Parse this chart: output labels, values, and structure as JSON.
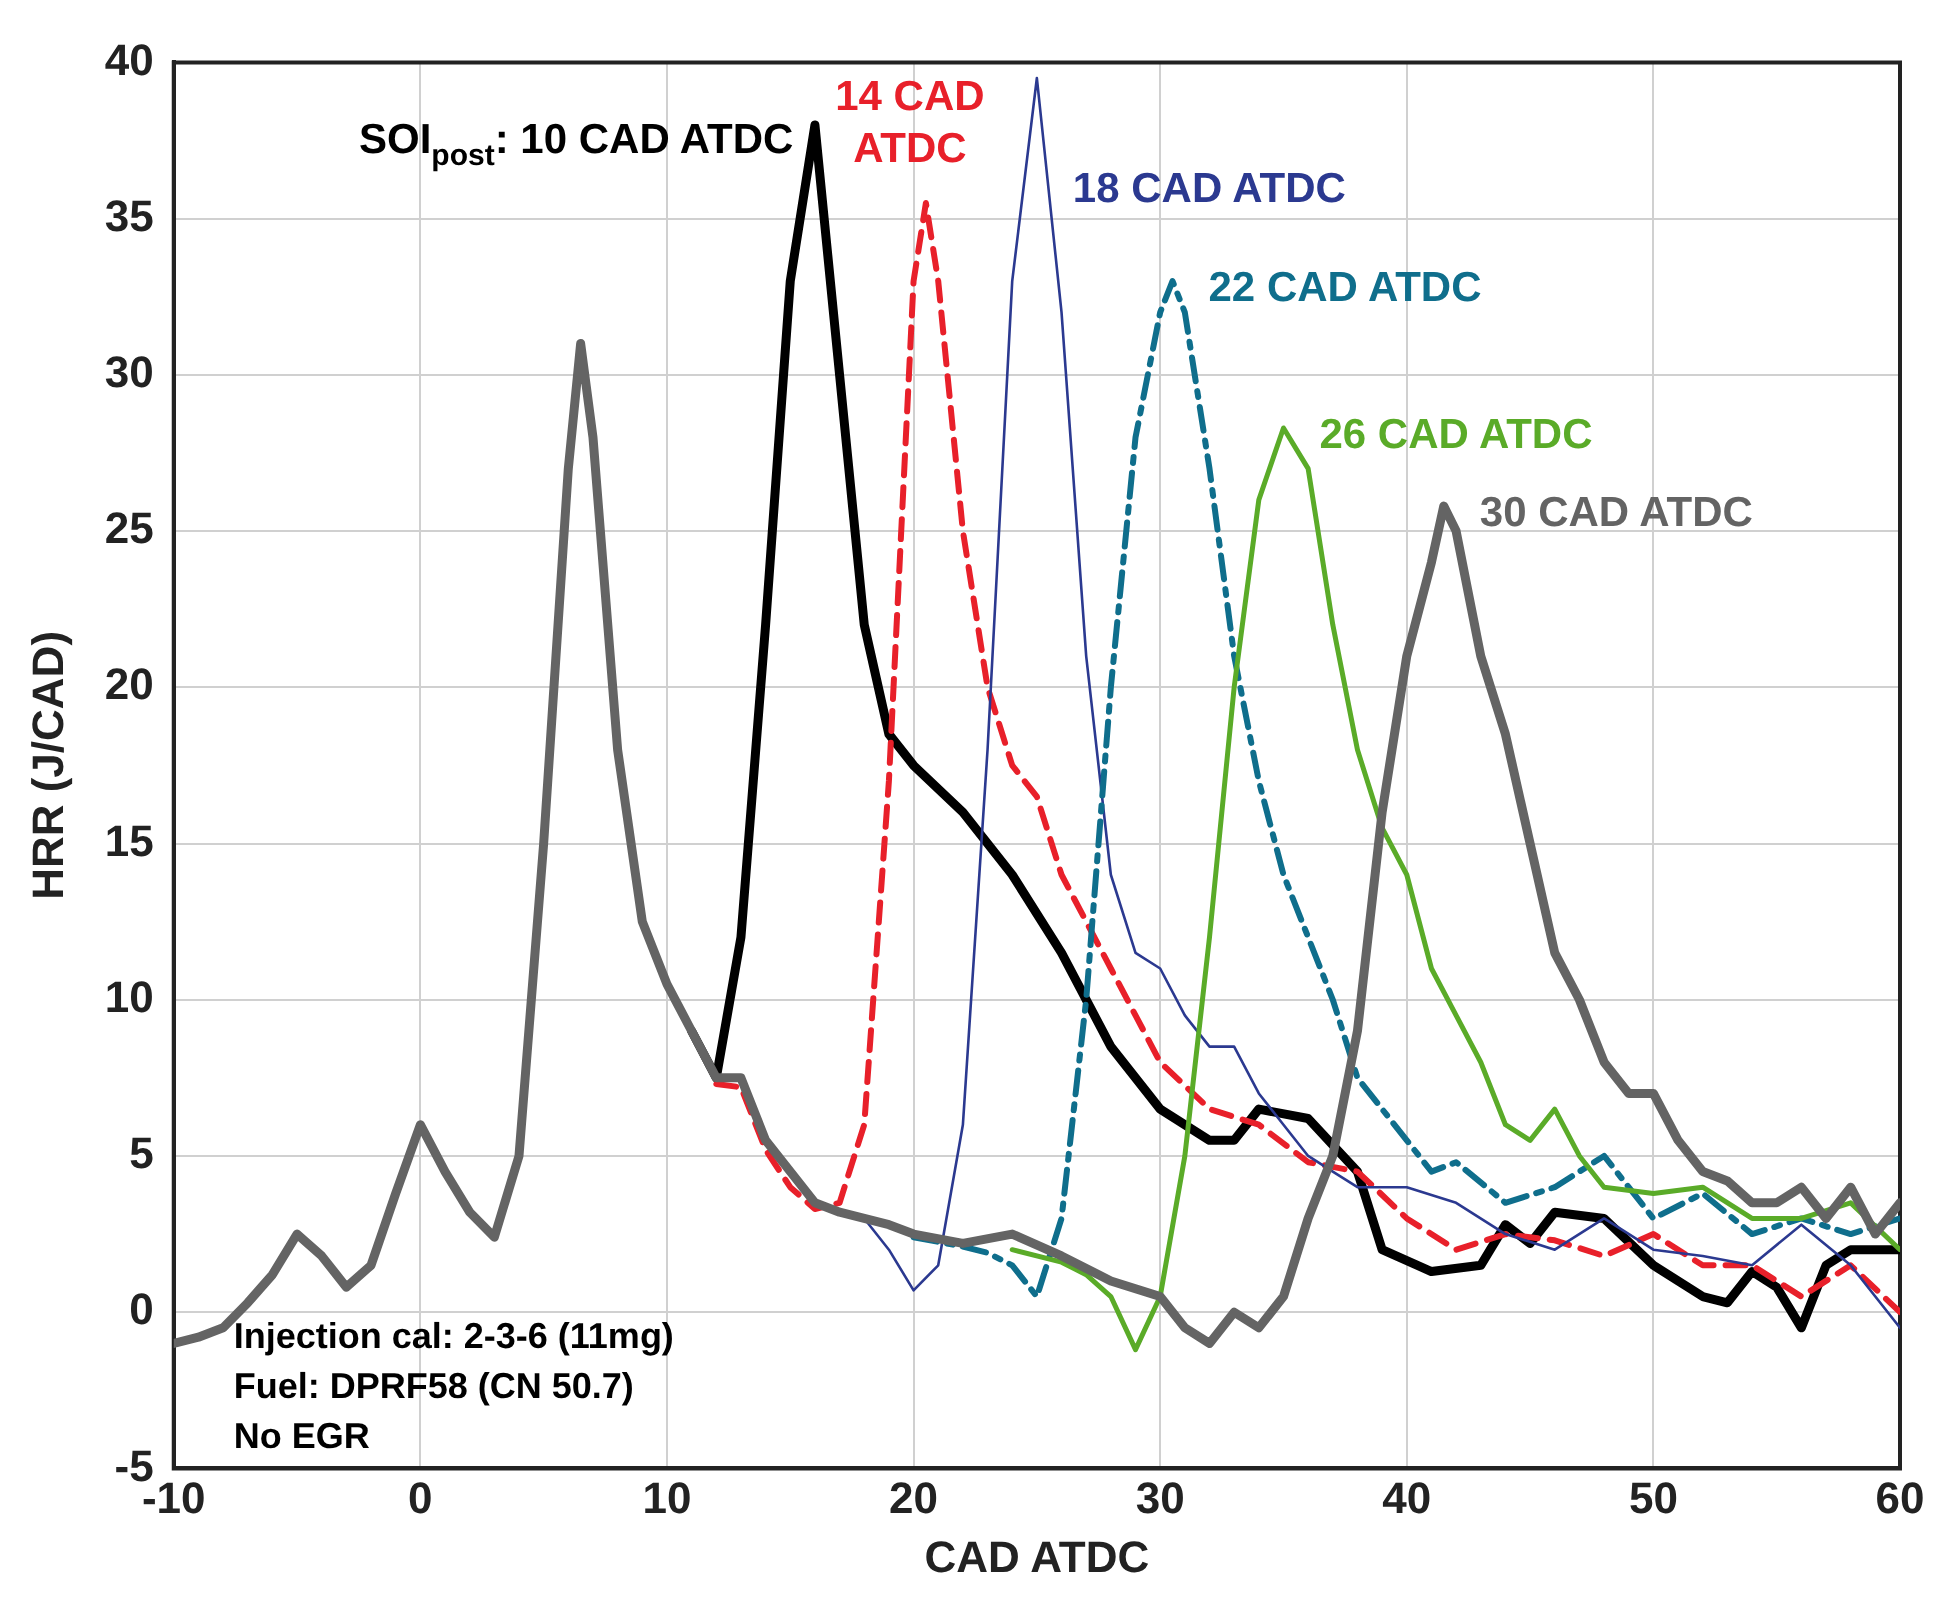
{
  "chart_data": {
    "type": "line",
    "xlabel": "CAD ATDC",
    "ylabel": "HRR (J/CAD)",
    "xlim": [
      -10,
      60
    ],
    "xticks": [
      -10,
      0,
      10,
      20,
      30,
      40,
      50,
      60
    ],
    "ylim": [
      -5,
      40
    ],
    "yticks": [
      -5,
      0,
      5,
      10,
      15,
      20,
      25,
      30,
      35,
      40
    ],
    "grid": true,
    "legend": false,
    "marker": "none",
    "annotations": [
      "Injection cal: 2-3-6 (11mg)",
      "Fuel: DPRF58 (CN 50.7)",
      "No EGR"
    ],
    "series": [
      {
        "name": "SOI$_{post}$: 10 CAD ATDC",
        "color": "#000000",
        "line_style": "solid",
        "x": [
          11,
          12,
          13,
          14,
          15,
          16,
          17,
          18,
          19,
          20,
          22,
          24,
          26,
          28,
          30,
          32,
          33,
          34,
          36,
          38,
          39,
          41,
          43,
          44,
          45,
          46,
          48,
          50,
          52,
          53,
          54,
          55,
          56,
          57,
          58,
          60
        ],
        "values": [
          9,
          7.5,
          12,
          22,
          33,
          38,
          30,
          22,
          18.5,
          17.5,
          16,
          14,
          11.5,
          8.5,
          6.5,
          5.5,
          5.5,
          6.5,
          6.2,
          4.5,
          2,
          1.3,
          1.5,
          2.8,
          2.2,
          3.2,
          3,
          1.5,
          0.5,
          0.3,
          1.3,
          0.8,
          -0.5,
          1.5,
          2,
          2
        ]
      },
      {
        "name": "14 CAD ATDC",
        "color": "#e8202a",
        "line_style": "dashed",
        "x": [
          12,
          13,
          14,
          15,
          16,
          17,
          18,
          19,
          20,
          20.5,
          21,
          22,
          23,
          24,
          25,
          26,
          27,
          28,
          30,
          32,
          34,
          36,
          38,
          40,
          42,
          44,
          46,
          48,
          50,
          52,
          54,
          56,
          58,
          60
        ],
        "values": [
          7.3,
          7.2,
          5.2,
          4,
          3.3,
          3.5,
          6,
          17,
          33,
          35.5,
          33,
          25,
          20,
          17.5,
          16.5,
          14,
          12.5,
          11,
          8,
          6.5,
          6,
          4.8,
          4.5,
          3,
          2,
          2.5,
          2.3,
          1.8,
          2.5,
          1.5,
          1.5,
          0.5,
          1.5,
          0
        ]
      },
      {
        "name": "18 CAD ATDC",
        "color": "#2b3990",
        "line_style": "solid",
        "x": [
          17,
          18,
          19,
          20,
          21,
          22,
          23,
          24,
          25,
          26,
          27,
          28,
          29,
          30,
          31,
          32,
          33,
          34,
          35,
          36,
          37,
          38,
          40,
          42,
          44,
          46,
          48,
          50,
          52,
          54,
          56,
          58,
          60
        ],
        "values": [
          3.2,
          3,
          2,
          0.7,
          1.5,
          6,
          18,
          33,
          39.5,
          32,
          21,
          14,
          11.5,
          11,
          9.5,
          8.5,
          8.5,
          7,
          6,
          5,
          4.5,
          4,
          4,
          3.5,
          2.5,
          2,
          3,
          2,
          1.8,
          1.5,
          2.8,
          1.5,
          -0.5
        ]
      },
      {
        "name": "22 CAD ATDC",
        "color": "#0f6e8c",
        "line_style": "dashdot",
        "x": [
          20,
          22,
          23,
          24,
          25,
          26,
          27,
          28,
          29,
          30,
          30.5,
          31,
          32,
          33,
          34,
          35,
          36,
          37,
          38,
          39,
          40,
          41,
          42,
          44,
          46,
          48,
          50,
          52,
          54,
          56,
          58,
          60
        ],
        "values": [
          2.4,
          2.1,
          1.9,
          1.5,
          0.5,
          3,
          10,
          20,
          28,
          32,
          33,
          32,
          27,
          21,
          17,
          14,
          12,
          10,
          7.5,
          6.5,
          5.5,
          4.5,
          4.8,
          3.5,
          4,
          5,
          3,
          3.8,
          2.5,
          3,
          2.5,
          3
        ]
      },
      {
        "name": "26 CAD ATDC",
        "color": "#5aab28",
        "line_style": "solid",
        "x": [
          24,
          26,
          27,
          28,
          29,
          30,
          31,
          32,
          33,
          34,
          35,
          36,
          37,
          38,
          39,
          40,
          41,
          42,
          43,
          44,
          45,
          46,
          47,
          48,
          50,
          52,
          54,
          56,
          58,
          60
        ],
        "values": [
          2.0,
          1.6,
          1.2,
          0.5,
          -1.2,
          0.5,
          5,
          12,
          20,
          26,
          28.3,
          27,
          22,
          18,
          15.5,
          14,
          11,
          9.5,
          8,
          6,
          5.5,
          6.5,
          5,
          4,
          3.8,
          4,
          3,
          3,
          3.5,
          2
        ]
      },
      {
        "name": "30 CAD ATDC",
        "color": "#646464",
        "line_style": "solid",
        "x": [
          -10,
          -9,
          -8,
          -7,
          -6,
          -5,
          -4,
          -3,
          -2,
          -1,
          0,
          1,
          2,
          3,
          4,
          5,
          6,
          6.5,
          7,
          8,
          9,
          10,
          11,
          12,
          13,
          14,
          15,
          16,
          17,
          18,
          19,
          20,
          22,
          24,
          26,
          28,
          30,
          31,
          32,
          33,
          34,
          35,
          36,
          37,
          38,
          39,
          40,
          41,
          41.5,
          42,
          43,
          44,
          45,
          46,
          47,
          48,
          49,
          50,
          51,
          52,
          53,
          54,
          55,
          56,
          57,
          58,
          59,
          60
        ],
        "values": [
          -1,
          -0.8,
          -0.5,
          0.3,
          1.2,
          2.5,
          1.8,
          0.8,
          1.5,
          3.8,
          6,
          4.5,
          3.2,
          2.4,
          5,
          15,
          27,
          31,
          28,
          18,
          12.5,
          10.5,
          9,
          7.5,
          7.5,
          5.5,
          4.5,
          3.5,
          3.2,
          3,
          2.8,
          2.5,
          2.2,
          2.5,
          1.8,
          1,
          0.5,
          -0.5,
          -1,
          0,
          -0.5,
          0.5,
          3,
          5,
          9,
          16,
          21,
          24,
          25.8,
          25,
          21,
          18.5,
          15,
          11.5,
          10,
          8,
          7,
          7,
          5.5,
          4.5,
          4.2,
          3.5,
          3.5,
          4,
          3,
          4,
          2.5,
          3.5
        ]
      }
    ]
  }
}
